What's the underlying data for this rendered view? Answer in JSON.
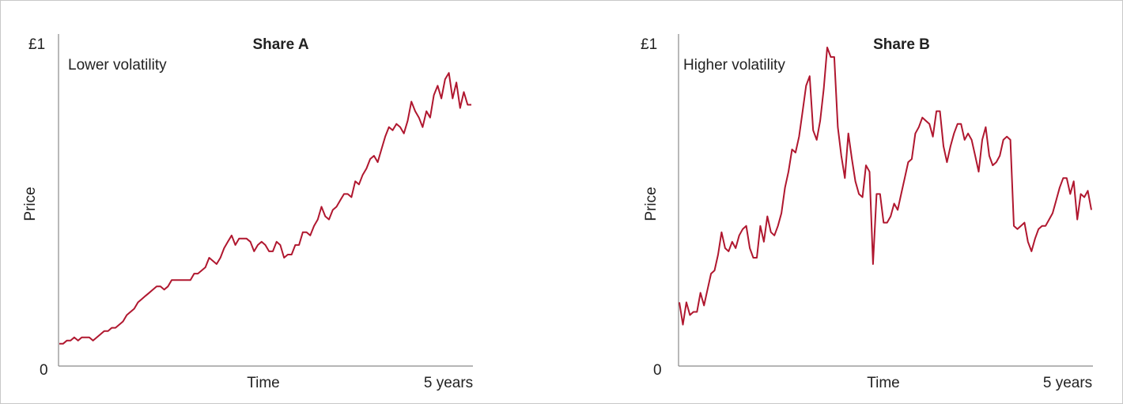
{
  "colors": {
    "line": "#b0172f",
    "axis": "#8a8a8a",
    "text": "#222222"
  },
  "chart_data": [
    {
      "type": "line",
      "title": "Share A",
      "subtitle": "Lower volatility",
      "ylabel": "Price",
      "xlabel": "Time",
      "y_top_label": "£1",
      "y_bottom_label": "0",
      "x_end_label": "5 years",
      "ylim": [
        0,
        1
      ],
      "xlim": [
        0,
        5
      ],
      "grid": false,
      "series": [
        {
          "values": [
            0.07,
            0.07,
            0.08,
            0.08,
            0.09,
            0.08,
            0.09,
            0.09,
            0.09,
            0.08,
            0.09,
            0.1,
            0.11,
            0.11,
            0.12,
            0.12,
            0.13,
            0.14,
            0.16,
            0.17,
            0.18,
            0.2,
            0.21,
            0.22,
            0.23,
            0.24,
            0.25,
            0.25,
            0.24,
            0.25,
            0.27,
            0.27,
            0.27,
            0.27,
            0.27,
            0.27,
            0.29,
            0.29,
            0.3,
            0.31,
            0.34,
            0.33,
            0.32,
            0.34,
            0.37,
            0.39,
            0.41,
            0.38,
            0.4,
            0.4,
            0.4,
            0.39,
            0.36,
            0.38,
            0.39,
            0.38,
            0.36,
            0.36,
            0.39,
            0.38,
            0.34,
            0.35,
            0.35,
            0.38,
            0.38,
            0.42,
            0.42,
            0.41,
            0.44,
            0.46,
            0.5,
            0.47,
            0.46,
            0.49,
            0.5,
            0.52,
            0.54,
            0.54,
            0.53,
            0.58,
            0.57,
            0.6,
            0.62,
            0.65,
            0.66,
            0.64,
            0.68,
            0.72,
            0.75,
            0.74,
            0.76,
            0.75,
            0.73,
            0.77,
            0.83,
            0.8,
            0.78,
            0.75,
            0.8,
            0.78,
            0.85,
            0.88,
            0.84,
            0.9,
            0.92,
            0.84,
            0.89,
            0.81,
            0.86,
            0.82,
            0.82
          ]
        }
      ]
    },
    {
      "type": "line",
      "title": "Share B",
      "subtitle": "Higher volatility",
      "ylabel": "Price",
      "xlabel": "Time",
      "y_top_label": "£1",
      "y_bottom_label": "0",
      "x_end_label": "5 years",
      "ylim": [
        0,
        1
      ],
      "xlim": [
        0,
        5
      ],
      "grid": false,
      "series": [
        {
          "values": [
            0.2,
            0.13,
            0.2,
            0.16,
            0.17,
            0.17,
            0.23,
            0.19,
            0.24,
            0.29,
            0.3,
            0.35,
            0.42,
            0.37,
            0.36,
            0.39,
            0.37,
            0.41,
            0.43,
            0.44,
            0.37,
            0.34,
            0.34,
            0.44,
            0.39,
            0.47,
            0.42,
            0.41,
            0.44,
            0.48,
            0.56,
            0.61,
            0.68,
            0.67,
            0.72,
            0.8,
            0.88,
            0.91,
            0.74,
            0.71,
            0.77,
            0.87,
            1.0,
            0.97,
            0.97,
            0.75,
            0.66,
            0.59,
            0.73,
            0.65,
            0.58,
            0.54,
            0.53,
            0.63,
            0.61,
            0.32,
            0.54,
            0.54,
            0.45,
            0.45,
            0.47,
            0.51,
            0.49,
            0.54,
            0.59,
            0.64,
            0.65,
            0.73,
            0.75,
            0.78,
            0.77,
            0.76,
            0.72,
            0.8,
            0.8,
            0.69,
            0.64,
            0.69,
            0.73,
            0.76,
            0.76,
            0.71,
            0.73,
            0.71,
            0.66,
            0.61,
            0.71,
            0.75,
            0.66,
            0.63,
            0.64,
            0.66,
            0.71,
            0.72,
            0.71,
            0.44,
            0.43,
            0.44,
            0.45,
            0.39,
            0.36,
            0.4,
            0.43,
            0.44,
            0.44,
            0.46,
            0.48,
            0.52,
            0.56,
            0.59,
            0.59,
            0.54,
            0.58,
            0.46,
            0.54,
            0.53,
            0.55,
            0.49
          ]
        }
      ]
    }
  ]
}
